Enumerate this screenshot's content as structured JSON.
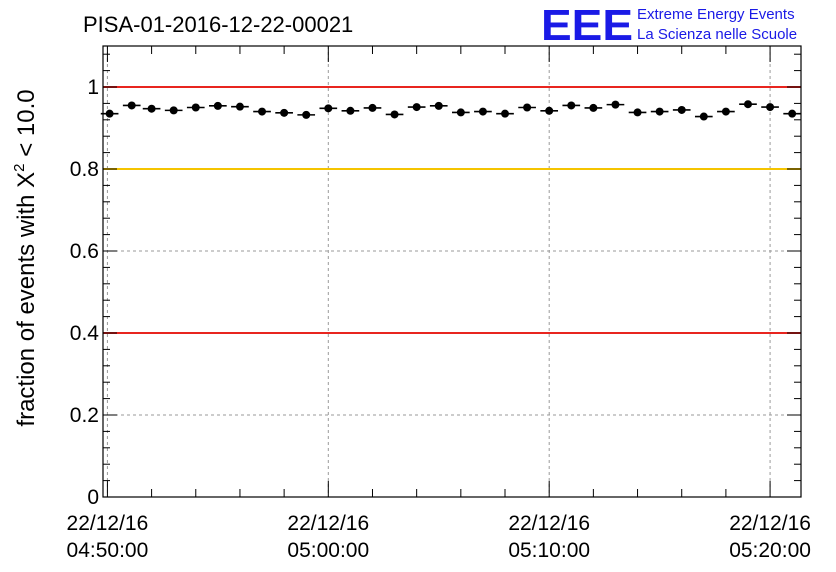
{
  "chart_data": {
    "type": "scatter",
    "title": "PISA-01-2016-12-22-00021",
    "ylabel": "fraction of events with X² < 10.0",
    "ylabel_main": "fraction of events with X",
    "ylabel_sup": "2",
    "ylabel_tail": " < 10.0",
    "xlabel": "",
    "x_unit": "minutes after 22/12/16 04:50:00",
    "xlim": [
      -0.2,
      31.4
    ],
    "ylim": [
      0,
      1.1
    ],
    "yticks": [
      0,
      0.2,
      0.4,
      0.6,
      0.8,
      1
    ],
    "ytick_labels": [
      "0",
      "0.2",
      "0.4",
      "0.6",
      "0.8",
      "1"
    ],
    "xticks": [
      {
        "x": 0,
        "date": "22/12/16",
        "time": "04:50:00"
      },
      {
        "x": 10,
        "date": "22/12/16",
        "time": "05:00:00"
      },
      {
        "x": 20,
        "date": "22/12/16",
        "time": "05:10:00"
      },
      {
        "x": 30,
        "date": "22/12/16",
        "time": "05:20:00"
      }
    ],
    "grid": true,
    "reference_lines": [
      {
        "y": 1.0,
        "color": "#e8251f"
      },
      {
        "y": 0.8,
        "color": "#f5c400"
      },
      {
        "y": 0.4,
        "color": "#e8251f"
      }
    ],
    "bin_halfwidth": 0.4,
    "series": [
      {
        "color": "#000000",
        "points": [
          {
            "x": 0.1,
            "y": 0.935
          },
          {
            "x": 1.1,
            "y": 0.955
          },
          {
            "x": 2.0,
            "y": 0.947
          },
          {
            "x": 3.0,
            "y": 0.943
          },
          {
            "x": 4.0,
            "y": 0.95
          },
          {
            "x": 5.0,
            "y": 0.954
          },
          {
            "x": 6.0,
            "y": 0.952
          },
          {
            "x": 7.0,
            "y": 0.94
          },
          {
            "x": 8.0,
            "y": 0.937
          },
          {
            "x": 9.0,
            "y": 0.932
          },
          {
            "x": 10.0,
            "y": 0.948
          },
          {
            "x": 11.0,
            "y": 0.942
          },
          {
            "x": 12.0,
            "y": 0.949
          },
          {
            "x": 13.0,
            "y": 0.933
          },
          {
            "x": 14.0,
            "y": 0.951
          },
          {
            "x": 15.0,
            "y": 0.954
          },
          {
            "x": 16.0,
            "y": 0.938
          },
          {
            "x": 17.0,
            "y": 0.94
          },
          {
            "x": 18.0,
            "y": 0.935
          },
          {
            "x": 19.0,
            "y": 0.95
          },
          {
            "x": 20.0,
            "y": 0.942
          },
          {
            "x": 21.0,
            "y": 0.955
          },
          {
            "x": 22.0,
            "y": 0.949
          },
          {
            "x": 23.0,
            "y": 0.957
          },
          {
            "x": 24.0,
            "y": 0.938
          },
          {
            "x": 25.0,
            "y": 0.94
          },
          {
            "x": 26.0,
            "y": 0.944
          },
          {
            "x": 27.0,
            "y": 0.928
          },
          {
            "x": 28.0,
            "y": 0.94
          },
          {
            "x": 29.0,
            "y": 0.958
          },
          {
            "x": 30.0,
            "y": 0.951
          },
          {
            "x": 31.0,
            "y": 0.935
          }
        ]
      }
    ]
  },
  "logo": {
    "letters": "EEE",
    "line1": "Extreme Energy Events",
    "line2": "La Scienza nelle Scuole",
    "color": "#1a1ae6"
  }
}
